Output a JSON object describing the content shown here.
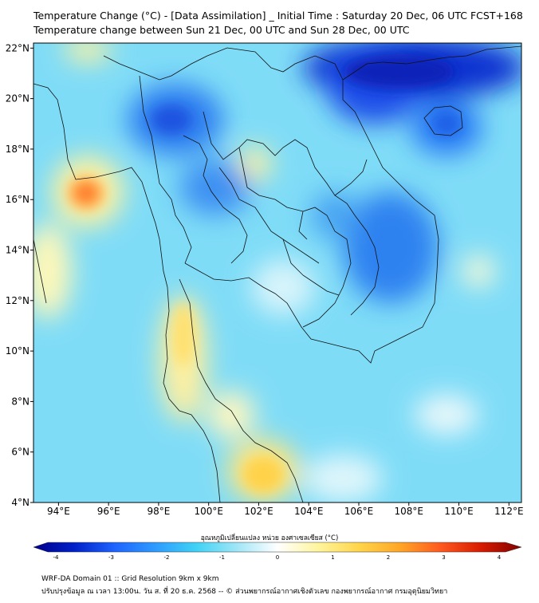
{
  "header": {
    "title_line1": "Temperature Change (°C) - [Data Assimilation] _ Initial Time : Saturday 20 Dec, 06 UTC FCST+168",
    "title_line2": "Temperature change between Sun 21 Dec, 00 UTC and Sun 28 Dec, 00 UTC"
  },
  "map": {
    "lon_ticks": [
      "94°E",
      "96°E",
      "98°E",
      "100°E",
      "102°E",
      "104°E",
      "106°E",
      "108°E",
      "110°E",
      "112°E"
    ],
    "lat_ticks": [
      "4°N",
      "6°N",
      "8°N",
      "10°N",
      "12°N",
      "14°N",
      "16°N",
      "18°N",
      "20°N",
      "22°N"
    ],
    "lon_values": [
      94,
      96,
      98,
      100,
      102,
      104,
      106,
      108,
      110,
      112
    ],
    "lat_values": [
      4,
      6,
      8,
      10,
      12,
      14,
      16,
      18,
      20,
      22
    ],
    "lon_range": [
      93,
      112.5
    ],
    "lat_range": [
      4,
      22.2
    ]
  },
  "colorbar": {
    "title": "อุณหภูมิเปลี่ยนแปลง หน่วย องศาเซลเซียส (°C)",
    "ticks": [
      "-4",
      "-3",
      "-2",
      "-1",
      "0",
      "1",
      "2",
      "3",
      "4"
    ],
    "range": [
      -4,
      4
    ],
    "colors": [
      "#00008b",
      "#0020c8",
      "#1e64ff",
      "#2e9bff",
      "#3fd2f5",
      "#9fe6f7",
      "#ffffff",
      "#fff59d",
      "#ffd54a",
      "#ffa726",
      "#ff5a1f",
      "#d81b00",
      "#800000"
    ]
  },
  "footer": {
    "line1": "WRF-DA Domain 01 :: Grid Resolution 9km x 9km",
    "line2": "ปรับปรุงข้อมูล ณ เวลา 13:00น. วัน ส. ที่ 20 ธ.ค. 2568 -- © ส่วนพยากรณ์อากาศเชิงตัวเลข กองพยากรณ์อากาศ กรมอุตุนิยมวิทยา"
  }
}
